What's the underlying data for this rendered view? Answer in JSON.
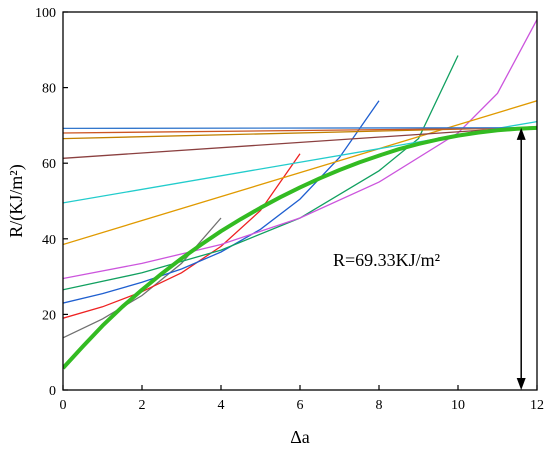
{
  "chart_data": {
    "type": "line",
    "title": "",
    "xlabel": "Δa",
    "ylabel": "R/(KJ/m²)",
    "xlim": [
      0,
      12
    ],
    "ylim": [
      0,
      100
    ],
    "x_ticks": [
      0,
      2,
      4,
      6,
      8,
      10,
      12
    ],
    "y_ticks": [
      0,
      20,
      40,
      60,
      80,
      100
    ],
    "grid": false,
    "annotation": {
      "text": "R=69.33KJ/m²",
      "arrow_x": 11.6,
      "arrow_from_y": 0,
      "arrow_to_y": 69.33
    },
    "main_curve": {
      "color": "#33bb22",
      "x": [
        0,
        0.5,
        1,
        1.5,
        2,
        2.5,
        3,
        3.5,
        4,
        4.5,
        5,
        5.5,
        6,
        6.5,
        7,
        7.5,
        8,
        8.5,
        9,
        9.5,
        10,
        10.5,
        11,
        11.5,
        12
      ],
      "y": [
        5.8,
        11.5,
        17.0,
        22.0,
        26.5,
        30.8,
        34.8,
        38.5,
        42.0,
        45.2,
        48.2,
        51.0,
        53.6,
        56.0,
        58.2,
        60.2,
        62.0,
        63.7,
        65.1,
        66.3,
        67.3,
        68.1,
        68.7,
        69.1,
        69.33
      ]
    },
    "tangent_lines": [
      {
        "color": "#707070",
        "x": [
          0,
          1,
          2,
          3,
          4
        ],
        "y": [
          13.8,
          18.8,
          25.0,
          33.5,
          45.5
        ]
      },
      {
        "color": "#ee2222",
        "x": [
          0,
          1,
          2,
          3,
          4,
          5,
          6
        ],
        "y": [
          19.0,
          22.0,
          26.0,
          31.0,
          38.0,
          47.5,
          62.5
        ]
      },
      {
        "color": "#1f5fd0",
        "x": [
          0,
          1,
          2,
          3,
          4,
          5,
          6,
          7,
          8
        ],
        "y": [
          23.0,
          25.5,
          28.5,
          32.0,
          36.5,
          42.5,
          50.5,
          61.5,
          76.5
        ]
      },
      {
        "color": "#11a060",
        "x": [
          0,
          2,
          4,
          6,
          8,
          9,
          10
        ],
        "y": [
          26.5,
          31.0,
          37.0,
          45.5,
          58.0,
          66.5,
          88.5
        ]
      },
      {
        "color": "#cc55dd",
        "x": [
          0,
          2,
          4,
          6,
          8,
          10,
          11,
          12
        ],
        "y": [
          29.5,
          33.5,
          38.5,
          45.5,
          55.0,
          68.0,
          78.5,
          98.0
        ]
      },
      {
        "color": "#e09a00",
        "x": [
          0,
          12
        ],
        "y": [
          38.5,
          76.5
        ]
      },
      {
        "color": "#22cccc",
        "x": [
          0,
          12
        ],
        "y": [
          49.5,
          71.0
        ]
      },
      {
        "color": "#8b4040",
        "x": [
          0,
          12
        ],
        "y": [
          61.3,
          69.7
        ]
      },
      {
        "color": "#c08000",
        "x": [
          0,
          12
        ],
        "y": [
          66.5,
          69.5
        ]
      },
      {
        "color": "#cc5522",
        "x": [
          0,
          12
        ],
        "y": [
          68.0,
          69.3
        ]
      },
      {
        "color": "#3377cc",
        "x": [
          0,
          12
        ],
        "y": [
          69.2,
          69.4
        ]
      }
    ]
  }
}
